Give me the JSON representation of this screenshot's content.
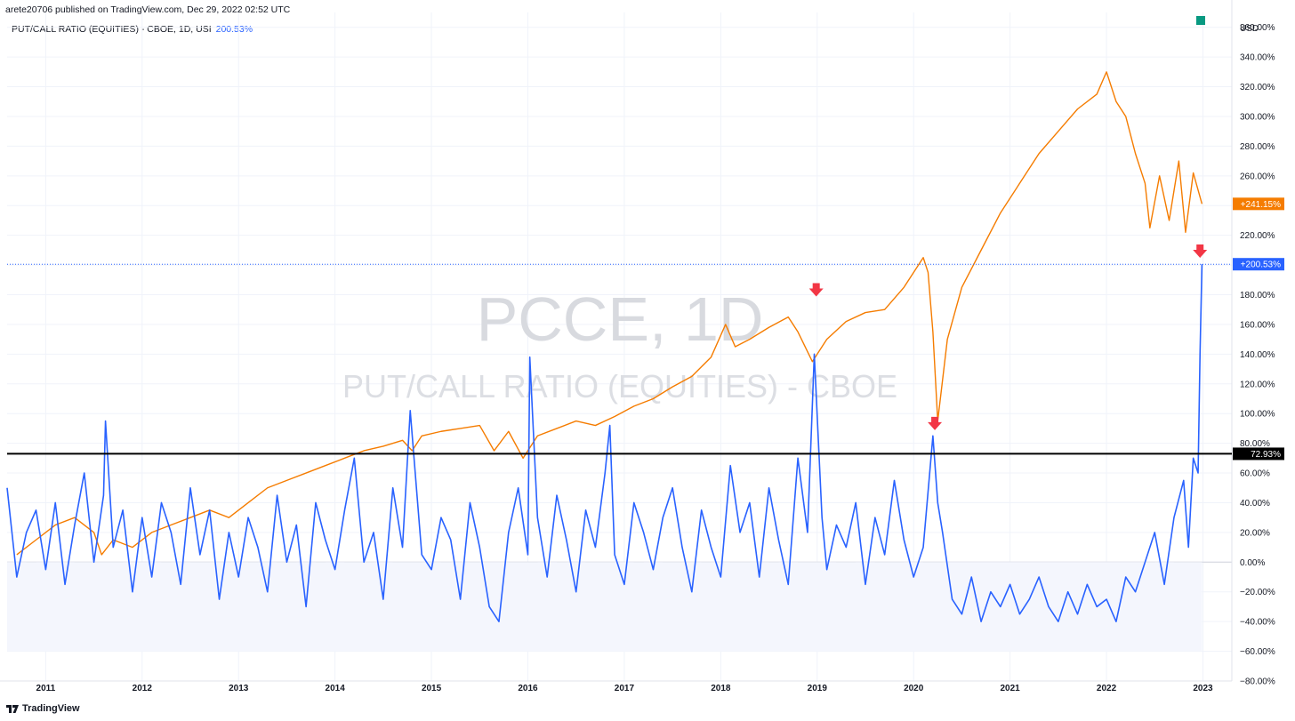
{
  "header": {
    "published_text": "arete20706 published on TradingView.com, Dec 29, 2022 02:52 UTC"
  },
  "legend": {
    "label": "PUT/CALL RATIO (EQUITIES) - CBOE, 1D, USI",
    "value": "200.53%"
  },
  "watermark": {
    "symbol": "PCCE, 1D",
    "name": "PUT/CALL RATIO (EQUITIES) - CBOE"
  },
  "footer": {
    "brand": "TradingView"
  },
  "colors": {
    "primary": "#2962ff",
    "compare": "#f57c00",
    "marker": "#f23645",
    "top_marker": "#089981"
  },
  "chart_data": {
    "type": "line",
    "y_unit": "USD",
    "ylim": [
      -80,
      370
    ],
    "y_ticks": [
      -80,
      -60,
      -40,
      -20,
      0,
      20,
      40,
      60,
      80,
      100,
      120,
      140,
      160,
      180,
      200,
      220,
      240,
      260,
      280,
      300,
      320,
      340,
      360
    ],
    "y_tick_labels": [
      "−80.00%",
      "−60.00%",
      "−40.00%",
      "−20.00%",
      "0.00%",
      "20.00%",
      "40.00%",
      "60.00%",
      "80.00%",
      "100.00%",
      "120.00%",
      "140.00%",
      "160.00%",
      "180.00%",
      "200.00%",
      "220.00%",
      "240.00%",
      "260.00%",
      "280.00%",
      "300.00%",
      "320.00%",
      "340.00%",
      "360.00%"
    ],
    "xlim": [
      2010.6,
      2023.3
    ],
    "x_ticks": [
      2011,
      2012,
      2013,
      2014,
      2015,
      2016,
      2017,
      2018,
      2019,
      2020,
      2021,
      2022,
      2023
    ],
    "x_tick_labels": [
      "2011",
      "2012",
      "2013",
      "2014",
      "2015",
      "2016",
      "2017",
      "2018",
      "2019",
      "2020",
      "2021",
      "2022",
      "2023"
    ],
    "grid": true,
    "series": [
      {
        "name": "PUT/CALL RATIO (EQUITIES) - CBOE",
        "color": "#2962ff",
        "last_value_label": "+200.53%",
        "x": [
          2010.6,
          2010.7,
          2010.8,
          2010.9,
          2011.0,
          2011.1,
          2011.2,
          2011.3,
          2011.4,
          2011.5,
          2011.6,
          2011.62,
          2011.7,
          2011.8,
          2011.9,
          2012.0,
          2012.1,
          2012.2,
          2012.3,
          2012.4,
          2012.5,
          2012.6,
          2012.7,
          2012.8,
          2012.9,
          2013.0,
          2013.1,
          2013.2,
          2013.3,
          2013.4,
          2013.5,
          2013.6,
          2013.7,
          2013.8,
          2013.9,
          2014.0,
          2014.1,
          2014.2,
          2014.3,
          2014.4,
          2014.5,
          2014.6,
          2014.7,
          2014.78,
          2014.9,
          2015.0,
          2015.1,
          2015.2,
          2015.3,
          2015.4,
          2015.5,
          2015.6,
          2015.7,
          2015.8,
          2015.9,
          2016.0,
          2016.02,
          2016.1,
          2016.2,
          2016.3,
          2016.4,
          2016.5,
          2016.6,
          2016.7,
          2016.8,
          2016.85,
          2016.9,
          2017.0,
          2017.1,
          2017.2,
          2017.3,
          2017.4,
          2017.5,
          2017.6,
          2017.7,
          2017.8,
          2017.9,
          2018.0,
          2018.1,
          2018.2,
          2018.3,
          2018.4,
          2018.5,
          2018.6,
          2018.7,
          2018.8,
          2018.9,
          2018.97,
          2019.05,
          2019.1,
          2019.2,
          2019.3,
          2019.4,
          2019.5,
          2019.6,
          2019.7,
          2019.8,
          2019.9,
          2020.0,
          2020.1,
          2020.2,
          2020.25,
          2020.3,
          2020.4,
          2020.5,
          2020.6,
          2020.7,
          2020.8,
          2020.9,
          2021.0,
          2021.1,
          2021.2,
          2021.3,
          2021.4,
          2021.5,
          2021.6,
          2021.7,
          2021.8,
          2021.9,
          2022.0,
          2022.1,
          2022.2,
          2022.3,
          2022.4,
          2022.5,
          2022.6,
          2022.7,
          2022.8,
          2022.85,
          2022.9,
          2022.95,
          2022.97,
          2022.99
        ],
        "y": [
          50,
          -10,
          20,
          35,
          -5,
          40,
          -15,
          25,
          60,
          0,
          45,
          95,
          10,
          35,
          -20,
          30,
          -10,
          40,
          20,
          -15,
          50,
          5,
          35,
          -25,
          20,
          -10,
          30,
          10,
          -20,
          45,
          0,
          25,
          -30,
          40,
          15,
          -5,
          35,
          70,
          0,
          20,
          -25,
          50,
          10,
          102,
          5,
          -5,
          30,
          15,
          -25,
          40,
          10,
          -30,
          -40,
          20,
          50,
          5,
          138,
          30,
          -10,
          45,
          15,
          -20,
          35,
          10,
          60,
          92,
          5,
          -15,
          40,
          20,
          -5,
          30,
          50,
          10,
          -20,
          35,
          10,
          -10,
          65,
          20,
          40,
          -10,
          50,
          15,
          -15,
          70,
          20,
          140,
          30,
          -5,
          25,
          10,
          40,
          -15,
          30,
          5,
          55,
          15,
          -10,
          10,
          85,
          40,
          20,
          -25,
          -35,
          -10,
          -40,
          -20,
          -30,
          -15,
          -35,
          -25,
          -10,
          -30,
          -40,
          -20,
          -35,
          -15,
          -30,
          -25,
          -40,
          -10,
          -20,
          0,
          20,
          -15,
          30,
          55,
          10,
          70,
          60,
          140,
          200.53
        ]
      },
      {
        "name": "",
        "color": "#f57c00",
        "last_value_label": "+241.15%",
        "x": [
          2010.7,
          2010.9,
          2011.1,
          2011.3,
          2011.5,
          2011.58,
          2011.7,
          2011.9,
          2012.1,
          2012.3,
          2012.5,
          2012.7,
          2012.9,
          2013.1,
          2013.3,
          2013.5,
          2013.7,
          2013.9,
          2014.1,
          2014.3,
          2014.5,
          2014.7,
          2014.8,
          2014.9,
          2015.1,
          2015.3,
          2015.5,
          2015.65,
          2015.8,
          2015.95,
          2016.1,
          2016.3,
          2016.5,
          2016.7,
          2016.9,
          2017.1,
          2017.3,
          2017.5,
          2017.7,
          2017.9,
          2018.05,
          2018.15,
          2018.3,
          2018.5,
          2018.7,
          2018.8,
          2018.95,
          2019.1,
          2019.3,
          2019.5,
          2019.7,
          2019.9,
          2020.1,
          2020.15,
          2020.2,
          2020.25,
          2020.35,
          2020.5,
          2020.7,
          2020.9,
          2021.1,
          2021.3,
          2021.5,
          2021.7,
          2021.9,
          2022.0,
          2022.1,
          2022.2,
          2022.3,
          2022.4,
          2022.45,
          2022.55,
          2022.65,
          2022.75,
          2022.82,
          2022.9,
          2022.99
        ],
        "y": [
          5,
          15,
          25,
          30,
          20,
          5,
          15,
          10,
          20,
          25,
          30,
          35,
          30,
          40,
          50,
          55,
          60,
          65,
          70,
          75,
          78,
          82,
          75,
          85,
          88,
          90,
          92,
          75,
          88,
          70,
          85,
          90,
          95,
          92,
          98,
          105,
          110,
          118,
          125,
          138,
          160,
          145,
          150,
          158,
          165,
          155,
          135,
          150,
          162,
          168,
          170,
          185,
          205,
          195,
          155,
          95,
          150,
          185,
          210,
          235,
          255,
          275,
          290,
          305,
          315,
          330,
          310,
          300,
          275,
          255,
          225,
          260,
          230,
          270,
          222,
          262,
          241.15
        ]
      }
    ],
    "horizontal_line": {
      "value": 72.93,
      "label": "72.93%"
    },
    "markers": [
      {
        "type": "arrow-down",
        "x": 2018.99,
        "y": 183
      },
      {
        "type": "arrow-down",
        "x": 2020.22,
        "y": 93
      },
      {
        "type": "arrow-down",
        "x": 2022.97,
        "y": 209
      }
    ]
  }
}
